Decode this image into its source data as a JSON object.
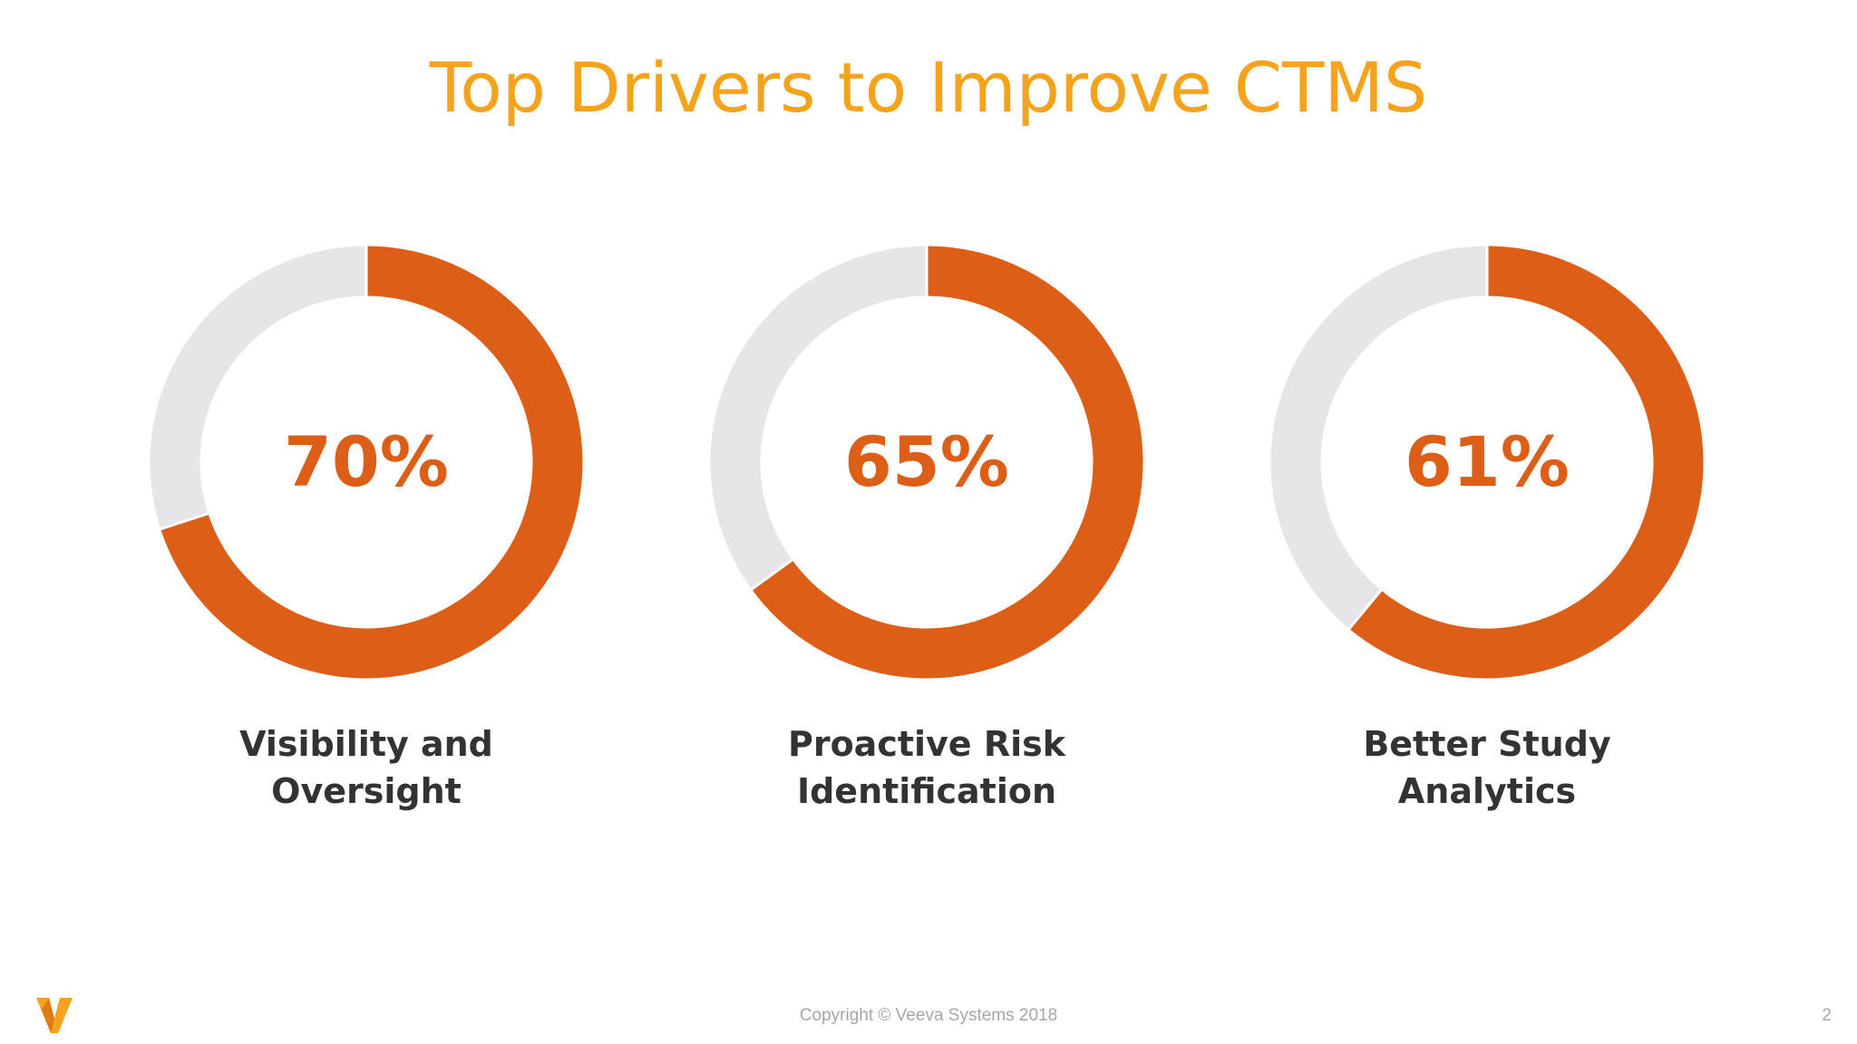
{
  "slide": {
    "title": "Top Drivers to Improve CTMS",
    "copyright": "Copyright © Veeva Systems 2018",
    "page_number": "2",
    "logo": "veeva-v-logo"
  },
  "colors": {
    "title": "#f5a21c",
    "value": "#dd5e16",
    "remainder": "#e6e5e8",
    "label": "#333333",
    "footer": "#a6a6a6"
  },
  "chart_data": [
    {
      "type": "pie",
      "value": 70,
      "value_label": "70%",
      "category_lines": [
        "Visibility and",
        "Oversight"
      ]
    },
    {
      "type": "pie",
      "value": 65,
      "value_label": "65%",
      "category_lines": [
        "Proactive Risk",
        "Identification"
      ]
    },
    {
      "type": "pie",
      "value": 61,
      "value_label": "61%",
      "category_lines": [
        "Better Study",
        "Analytics"
      ]
    }
  ]
}
